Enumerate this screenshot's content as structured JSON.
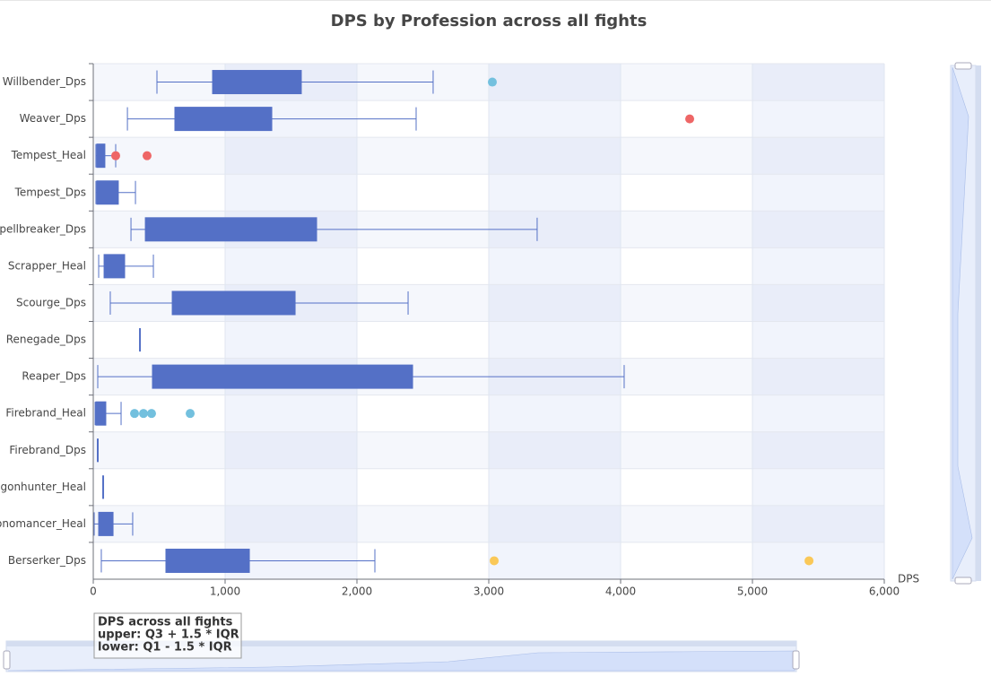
{
  "chart_data": {
    "type": "boxplot",
    "title": "DPS by Profession across all fights",
    "x_label": "DPS",
    "categories": [
      "Willbender_Dps",
      "Weaver_Dps",
      "Tempest_Heal",
      "Tempest_Dps",
      "Spellbreaker_Dps",
      "Scrapper_Heal",
      "Scourge_Dps",
      "Renegade_Dps",
      "Reaper_Dps",
      "Firebrand_Heal",
      "Firebrand_Dps",
      "Dragonhunter_Heal",
      "Chronomancer_Heal",
      "Berserker_Dps"
    ],
    "values": [
      [
        483,
        905,
        1250,
        1578,
        2578
      ],
      [
        259,
        619,
        950,
        1354,
        2449
      ],
      [
        20,
        27,
        50,
        88,
        170
      ],
      [
        20,
        27,
        100,
        190,
        320
      ],
      [
        286,
        395,
        1000,
        1694,
        3367
      ],
      [
        41,
        82,
        150,
        238,
        456
      ],
      [
        129,
        599,
        1000,
        1531,
        2388
      ],
      [
        354,
        354,
        354,
        354,
        354
      ],
      [
        34,
        449,
        1300,
        2422,
        4027
      ],
      [
        14,
        20,
        50,
        95,
        211
      ],
      [
        34,
        34,
        34,
        34,
        34
      ],
      [
        75,
        75,
        75,
        75,
        75
      ],
      [
        7,
        41,
        90,
        150,
        299
      ],
      [
        61,
        551,
        850,
        1184,
        2136
      ]
    ],
    "color": "#5470c6",
    "outliers": [
      {
        "category": "Willbender_Dps",
        "value": 3027,
        "color": "#73c0de"
      },
      {
        "category": "Weaver_Dps",
        "value": 4524,
        "color": "#ee6666"
      },
      {
        "category": "Tempest_Heal",
        "value": 170,
        "color": "#ee6666"
      },
      {
        "category": "Tempest_Heal",
        "value": 408,
        "color": "#ee6666"
      },
      {
        "category": "Firebrand_Heal",
        "value": 313,
        "color": "#73c0de"
      },
      {
        "category": "Firebrand_Heal",
        "value": 381,
        "color": "#73c0de"
      },
      {
        "category": "Firebrand_Heal",
        "value": 442,
        "color": "#73c0de"
      },
      {
        "category": "Firebrand_Heal",
        "value": 735,
        "color": "#73c0de"
      },
      {
        "category": "Berserker_Dps",
        "value": 3041,
        "color": "#fac858"
      },
      {
        "category": "Berserker_Dps",
        "value": 5429,
        "color": "#fac858"
      }
    ],
    "xlim": [
      0,
      6000
    ],
    "xticks": [
      0,
      {
        "value": 1000,
        "label": "1,000"
      },
      {
        "value": 2000,
        "label": "2,000"
      },
      {
        "value": 3000,
        "label": "3,000"
      },
      {
        "value": 4000,
        "label": "4,000"
      },
      {
        "value": 5000,
        "label": "5,000"
      },
      {
        "value": 6000,
        "label": "6,000"
      }
    ],
    "note": [
      "DPS across all fights",
      "upper: Q3 + 1.5 * IQR",
      "lower: Q1 - 1.5 * IQR"
    ]
  }
}
